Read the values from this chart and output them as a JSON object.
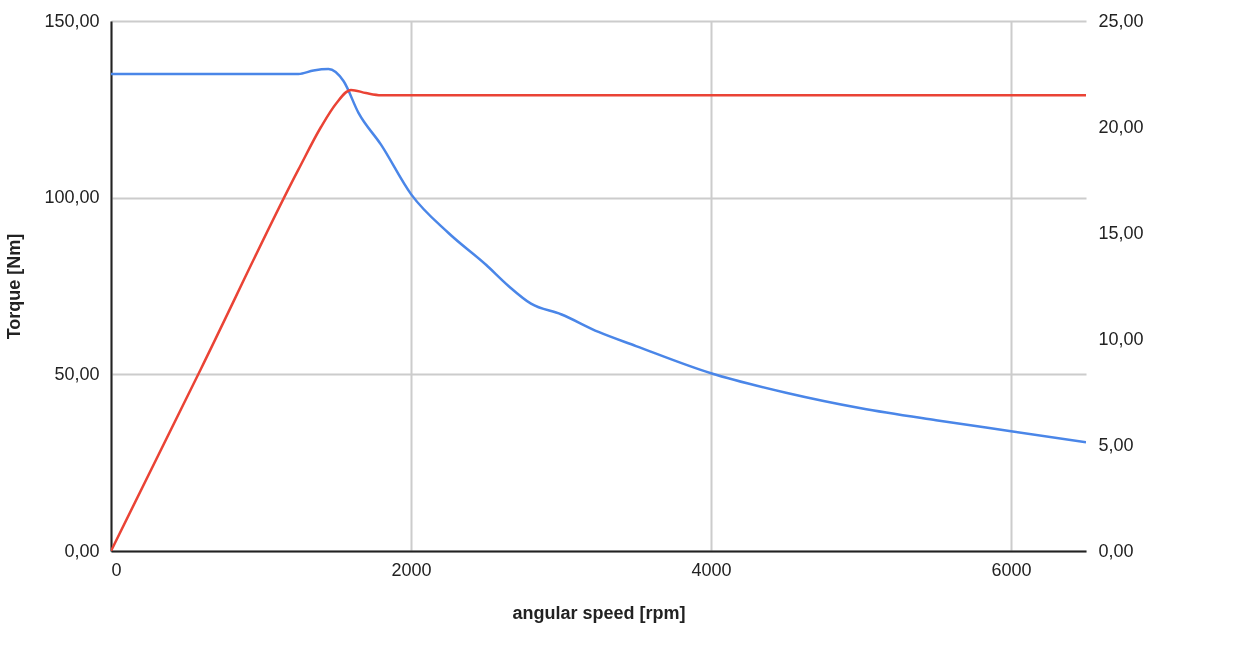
{
  "chart_data": {
    "type": "line",
    "xlabel": "angular speed [rpm]",
    "ylabel": "Torque [Nm]",
    "xlim": [
      0,
      6500
    ],
    "xticks": [
      0,
      2000,
      4000,
      6000
    ],
    "ylim": [
      0,
      150
    ],
    "yticks": [
      {
        "value": 0,
        "label": "0,00"
      },
      {
        "value": 50,
        "label": "50,00"
      },
      {
        "value": 100,
        "label": "100,00"
      },
      {
        "value": 150,
        "label": "150,00"
      }
    ],
    "y2lim": [
      0,
      25
    ],
    "y2ticks": [
      {
        "value": 0,
        "label": "0,00"
      },
      {
        "value": 5,
        "label": "5,00"
      },
      {
        "value": 10,
        "label": "10,00"
      },
      {
        "value": 15,
        "label": "15,00"
      },
      {
        "value": 20,
        "label": "20,00"
      },
      {
        "value": 25,
        "label": "25,00"
      }
    ],
    "grid": true,
    "marker": "none",
    "line_style": "solid",
    "series": [
      {
        "color": "#4a86e8",
        "x": [
          0,
          1250,
          1350,
          1450,
          1550,
          1650,
          1800,
          2000,
          2250,
          2500,
          2650,
          2800,
          3000,
          3250,
          3500,
          4000,
          4500,
          5000,
          5500,
          6000,
          6500
        ],
        "values": [
          135,
          135,
          136,
          136.4,
          133,
          124,
          115,
          101,
          90,
          81,
          75,
          70,
          67,
          62,
          58,
          50.3,
          44.8,
          40.4,
          37,
          33.9,
          30.8
        ]
      },
      {
        "color": "#ea4335",
        "axis": "y2",
        "x": [
          0,
          600,
          1250,
          1400,
          1500,
          1600,
          1700,
          1800,
          2500,
          4000,
          6500
        ],
        "values": [
          0,
          8.6,
          18,
          20,
          21.1,
          21.75,
          21.6,
          21.5,
          21.5,
          21.5,
          21.5
        ]
      }
    ]
  }
}
